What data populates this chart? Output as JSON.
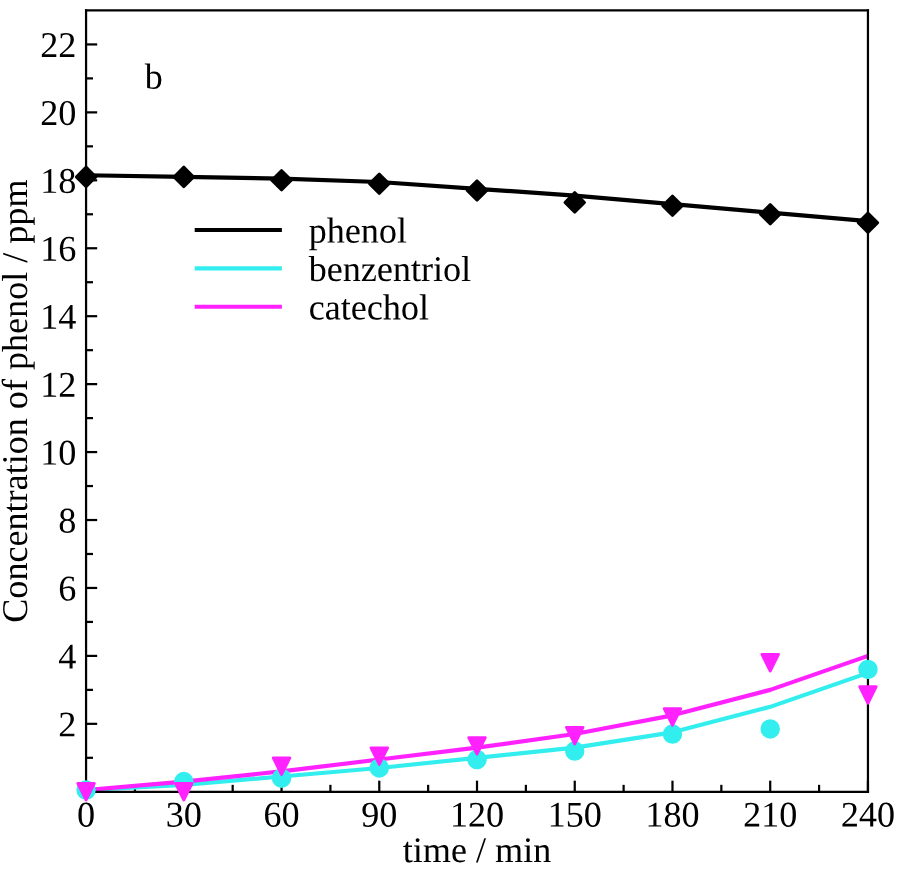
{
  "chart_data": {
    "type": "line",
    "xlabel": "time / min",
    "ylabel": "Concentration of phenol / ppm",
    "annotations": [
      "b"
    ],
    "x": [
      0,
      30,
      60,
      90,
      120,
      150,
      180,
      210,
      240
    ],
    "series": [
      {
        "name": "phenol",
        "color": "#000000",
        "marker": "none",
        "values": [
          18.15,
          18.1,
          18.05,
          17.95,
          17.75,
          17.55,
          17.3,
          17.05,
          16.8
        ]
      },
      {
        "name": "benzentriol",
        "color": "#33eeee",
        "marker": "none",
        "values": [
          0.05,
          0.2,
          0.45,
          0.7,
          1.0,
          1.3,
          1.75,
          2.5,
          3.5
        ]
      },
      {
        "name": "catechol",
        "color": "#ff22ff",
        "marker": "none",
        "values": [
          0.05,
          0.3,
          0.6,
          0.95,
          1.3,
          1.7,
          2.25,
          3.0,
          4.0
        ]
      },
      {
        "color": "#000000",
        "type": "scatter",
        "marker": "diamond",
        "values": [
          18.1,
          18.1,
          18.0,
          17.9,
          17.7,
          17.35,
          17.25,
          17.0,
          16.75
        ]
      },
      {
        "color": "#33eeee",
        "type": "scatter",
        "marker": "circle",
        "values": [
          0.05,
          0.3,
          0.4,
          0.7,
          0.95,
          1.2,
          1.7,
          1.85,
          3.6
        ]
      },
      {
        "color": "#ff22ff",
        "type": "scatter",
        "marker": "triangle",
        "values": [
          0.0,
          0.0,
          0.75,
          1.05,
          1.35,
          1.65,
          2.2,
          3.8,
          2.85
        ]
      }
    ],
    "xlim": [
      0,
      240
    ],
    "ylim": [
      0,
      23
    ],
    "xticks": [
      0,
      {
        "value": 15,
        "label": null
      },
      30,
      {
        "value": 45,
        "label": null
      },
      60,
      {
        "value": 75,
        "label": null
      },
      90,
      {
        "value": 105,
        "label": null
      },
      120,
      {
        "value": 135,
        "label": null
      },
      150,
      {
        "value": 165,
        "label": null
      },
      180,
      {
        "value": 195,
        "label": null
      },
      210,
      {
        "value": 225,
        "label": null
      },
      240
    ],
    "yticks": [
      {
        "value": 1,
        "label": null
      },
      2,
      {
        "value": 3,
        "label": null
      },
      4,
      {
        "value": 5,
        "label": null
      },
      6,
      {
        "value": 7,
        "label": null
      },
      8,
      {
        "value": 9,
        "label": null
      },
      10,
      {
        "value": 11,
        "label": null
      },
      12,
      {
        "value": 13,
        "label": null
      },
      14,
      {
        "value": 15,
        "label": null
      },
      16,
      {
        "value": 17,
        "label": null
      },
      18,
      {
        "value": 19,
        "label": null
      },
      20,
      {
        "value": 21,
        "label": null
      },
      22
    ],
    "grid": false,
    "legend": "left"
  }
}
